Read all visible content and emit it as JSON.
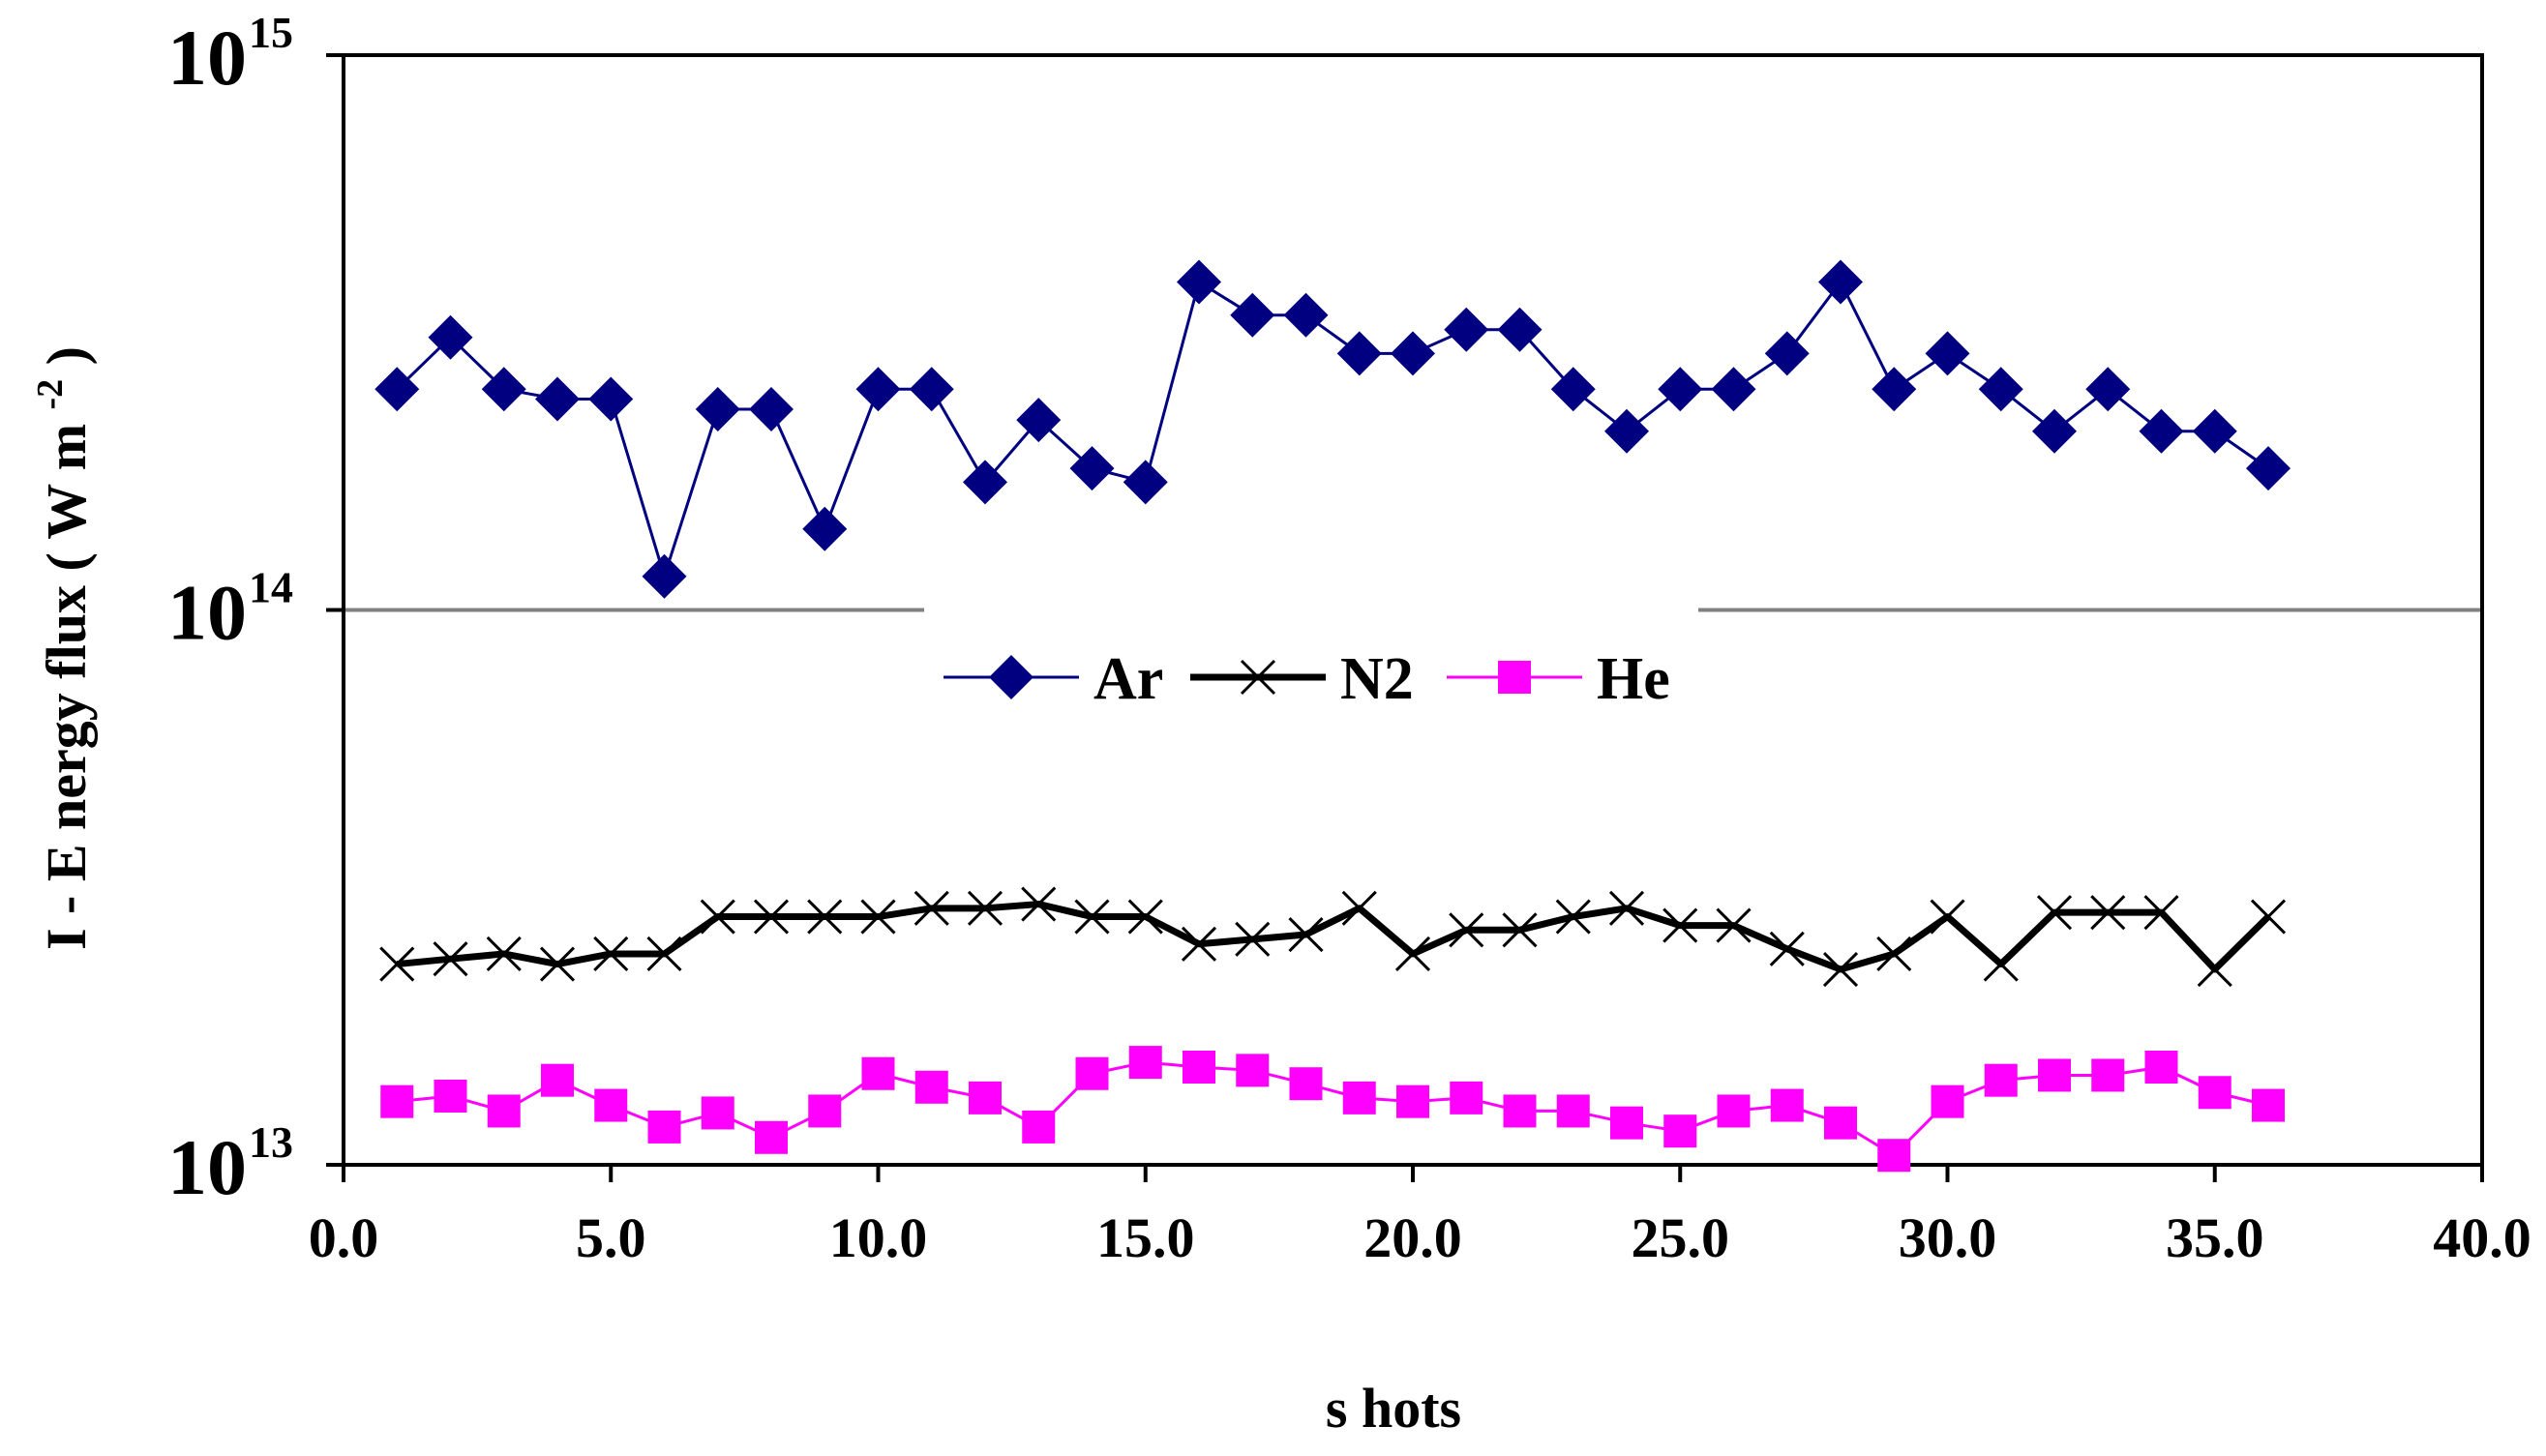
{
  "chart_data": {
    "type": "line",
    "title": "",
    "xlabel": "s hots",
    "ylabel": "I - E nergy flux",
    "ylabel_unit": "W m",
    "ylabel_unit_exp": "-2",
    "yscale": "log",
    "xlim": [
      0,
      40
    ],
    "ylim": [
      10000000000000.0,
      1000000000000000.0
    ],
    "x_ticks": [
      "0.0",
      "5.0",
      "10.0",
      "15.0",
      "20.0",
      "25.0",
      "30.0",
      "35.0",
      "40.0"
    ],
    "y_ticks": [
      {
        "base": "10",
        "exp": "13"
      },
      {
        "base": "10",
        "exp": "14"
      },
      {
        "base": "10",
        "exp": "15"
      }
    ],
    "legend_position": "center",
    "x": [
      1,
      2,
      3,
      4,
      5,
      6,
      7,
      8,
      9,
      10,
      11,
      12,
      13,
      14,
      15,
      16,
      17,
      18,
      19,
      20,
      21,
      22,
      23,
      24,
      25,
      26,
      27,
      28,
      29,
      30,
      31,
      32,
      33,
      34,
      35,
      36
    ],
    "series": [
      {
        "name": "Ar",
        "color": "#000080",
        "marker": "diamond",
        "values": [
          250000000000000.0,
          310000000000000.0,
          250000000000000.0,
          240000000000000.0,
          240000000000000.0,
          115000000000000.0,
          230000000000000.0,
          230000000000000.0,
          140000000000000.0,
          250000000000000.0,
          250000000000000.0,
          170000000000000.0,
          220000000000000.0,
          180000000000000.0,
          170000000000000.0,
          390000000000000.0,
          340000000000000.0,
          340000000000000.0,
          290000000000000.0,
          290000000000000.0,
          320000000000000.0,
          320000000000000.0,
          250000000000000.0,
          210000000000000.0,
          250000000000000.0,
          250000000000000.0,
          290000000000000.0,
          390000000000000.0,
          250000000000000.0,
          290000000000000.0,
          250000000000000.0,
          210000000000000.0,
          250000000000000.0,
          210000000000000.0,
          210000000000000.0,
          180000000000000.0
        ]
      },
      {
        "name": "N2",
        "color": "#000000",
        "marker": "x",
        "values": [
          23000000000000.0,
          23500000000000.0,
          24000000000000.0,
          23000000000000.0,
          24000000000000.0,
          24000000000000.0,
          28000000000000.0,
          28000000000000.0,
          28000000000000.0,
          28000000000000.0,
          29000000000000.0,
          29000000000000.0,
          29500000000000.0,
          28000000000000.0,
          28000000000000.0,
          25000000000000.0,
          25500000000000.0,
          26000000000000.0,
          29000000000000.0,
          24000000000000.0,
          26500000000000.0,
          26500000000000.0,
          28000000000000.0,
          29000000000000.0,
          27000000000000.0,
          27000000000000.0,
          24500000000000.0,
          22500000000000.0,
          24000000000000.0,
          28000000000000.0,
          23000000000000.0,
          28500000000000.0,
          28500000000000.0,
          28500000000000.0,
          22500000000000.0,
          28000000000000.0
        ]
      },
      {
        "name": "He",
        "color": "#ff00ff",
        "marker": "square",
        "values": [
          13000000000000.0,
          13300000000000.0,
          12500000000000.0,
          14200000000000.0,
          12800000000000.0,
          11700000000000.0,
          12400000000000.0,
          11200000000000.0,
          12500000000000.0,
          14600000000000.0,
          13800000000000.0,
          13200000000000.0,
          11700000000000.0,
          14600000000000.0,
          15300000000000.0,
          15000000000000.0,
          14800000000000.0,
          14000000000000.0,
          13200000000000.0,
          13000000000000.0,
          13200000000000.0,
          12500000000000.0,
          12500000000000.0,
          11900000000000.0,
          11500000000000.0,
          12500000000000.0,
          12800000000000.0,
          11900000000000.0,
          10400000000000.0,
          13000000000000.0,
          14200000000000.0,
          14500000000000.0,
          14500000000000.0,
          15000000000000.0,
          13500000000000.0,
          12800000000000.0
        ]
      }
    ]
  }
}
